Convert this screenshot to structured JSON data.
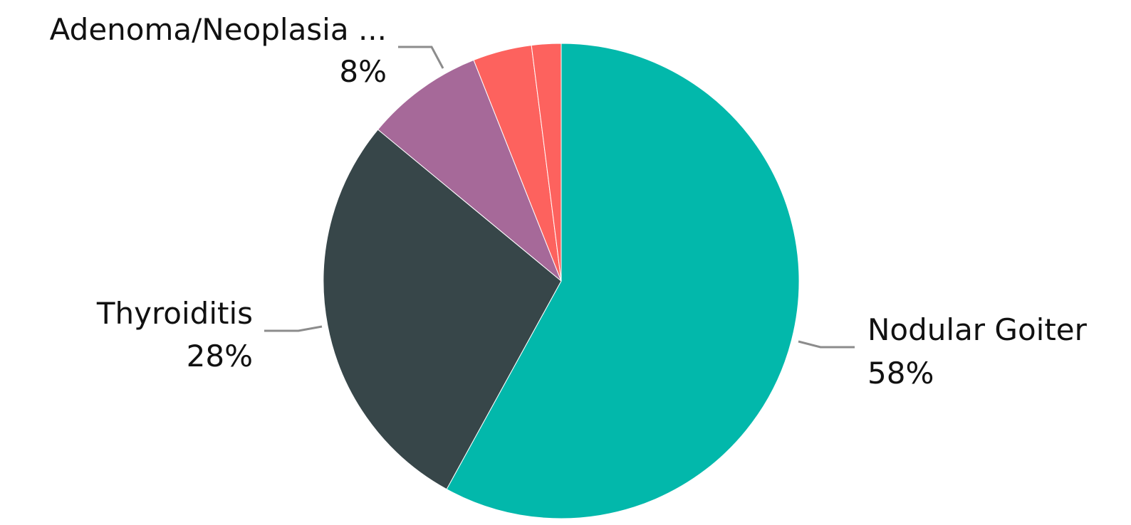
{
  "chart_data": {
    "type": "pie",
    "start_angle_deg": 0,
    "direction": "clockwise",
    "slices": [
      {
        "label": "Nodular Goiter",
        "value": 58,
        "display": "58%",
        "color": "#02b8ab",
        "labeled": true
      },
      {
        "label": "Thyroiditis",
        "value": 28,
        "display": "28%",
        "color": "#374649",
        "labeled": true
      },
      {
        "label": "Adenoma/Neoplasia ...",
        "value": 8,
        "display": "8%",
        "color": "#a66999",
        "labeled": true
      },
      {
        "label": "",
        "value": 4,
        "display": "",
        "color": "#fd625e",
        "labeled": false
      },
      {
        "label": "",
        "value": 2,
        "display": "",
        "color": "#fd625e",
        "labeled": false
      }
    ]
  }
}
